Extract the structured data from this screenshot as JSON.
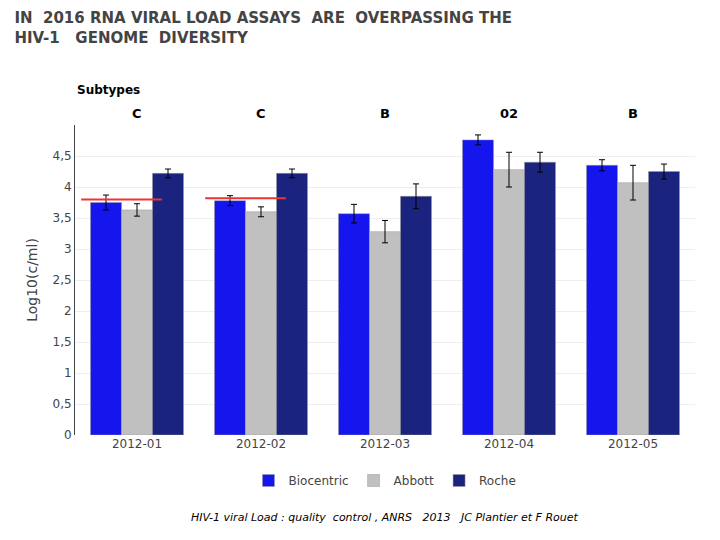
{
  "chart_data": {
    "type": "bar",
    "title": "IN  2016 RNA VIRAL LOAD ASSAYS  ARE  OVERPASSING THE\nHIV-1   GENOME  DIVERSITY",
    "subtitle": "Subtypes",
    "categories": [
      "2012-01",
      "2012-02",
      "2012-03",
      "2012-04",
      "2012-05"
    ],
    "series": [
      {
        "name": "Biocentric",
        "color": "#1515EE",
        "values": [
          3.75,
          3.78,
          3.57,
          4.76,
          4.35
        ],
        "errors": [
          0.12,
          0.08,
          0.15,
          0.08,
          0.09
        ]
      },
      {
        "name": "Abbott",
        "color": "#C0C0C0",
        "values": [
          3.63,
          3.6,
          3.28,
          4.28,
          4.07
        ],
        "errors": [
          0.1,
          0.08,
          0.18,
          0.28,
          0.28
        ]
      },
      {
        "name": "Roche",
        "color": "#1A237E",
        "values": [
          4.22,
          4.22,
          3.85,
          4.4,
          4.25
        ],
        "errors": [
          0.07,
          0.07,
          0.2,
          0.16,
          0.12
        ]
      }
    ],
    "annotations": [
      {
        "category": "2012-01",
        "text": "C"
      },
      {
        "category": "2012-02",
        "text": "C"
      },
      {
        "category": "2012-03",
        "text": "B"
      },
      {
        "category": "2012-04",
        "text": "02"
      },
      {
        "category": "2012-05",
        "text": "B"
      },
      {
        "text": "HIV-1 viral Load : quality  control , ANRS   2013   JC Plantier et F Rouet"
      }
    ],
    "reference_lines": [
      {
        "category": "2012-01",
        "value": 3.8,
        "color": "#EE3333"
      },
      {
        "category": "2012-02",
        "value": 3.82,
        "color": "#EE3333"
      }
    ],
    "ylabel": "Log10(c/ml)",
    "ylim": [
      0,
      5
    ],
    "yticks": [
      0,
      {
        "value": 0.5,
        "label": "0,5"
      },
      1,
      {
        "value": 1.5,
        "label": "1,5"
      },
      2,
      {
        "value": 2.5,
        "label": "2,5"
      },
      3,
      {
        "value": 3.5,
        "label": "3,5"
      },
      4,
      {
        "value": 4.5,
        "label": "4,5"
      }
    ],
    "grid": true,
    "legend": "bottom"
  }
}
